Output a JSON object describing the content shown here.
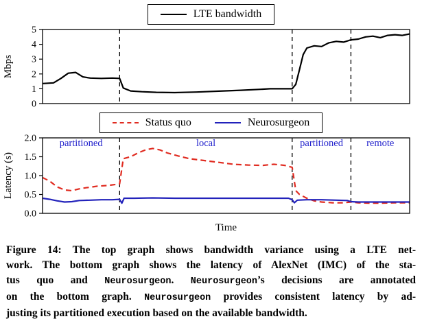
{
  "chart_data": [
    {
      "type": "line",
      "title": "",
      "ylabel": "Mbps",
      "xlabel": "",
      "ylim": [
        0,
        5
      ],
      "xlim": [
        0,
        100
      ],
      "yticks": [
        "0",
        "1",
        "2",
        "3",
        "4",
        "5"
      ],
      "grid": false,
      "legend_position": "top-center",
      "legend": [
        {
          "label": "LTE bandwidth",
          "color": "#000000",
          "dash": false
        }
      ],
      "dashed_vlines_x": [
        21,
        68,
        84
      ],
      "series": [
        {
          "name": "LTE bandwidth",
          "color": "#000000",
          "dash": false,
          "width": 2.2,
          "points": [
            [
              0,
              1.35
            ],
            [
              3,
              1.4
            ],
            [
              5,
              1.7
            ],
            [
              7,
              2.05
            ],
            [
              9,
              2.1
            ],
            [
              11,
              1.8
            ],
            [
              13,
              1.72
            ],
            [
              16,
              1.7
            ],
            [
              19,
              1.72
            ],
            [
              21,
              1.7
            ],
            [
              22,
              1.05
            ],
            [
              24,
              0.85
            ],
            [
              27,
              0.8
            ],
            [
              31,
              0.76
            ],
            [
              36,
              0.74
            ],
            [
              42,
              0.78
            ],
            [
              48,
              0.84
            ],
            [
              54,
              0.9
            ],
            [
              59,
              0.96
            ],
            [
              62,
              1.0
            ],
            [
              68,
              1.0
            ],
            [
              69,
              1.3
            ],
            [
              70,
              2.3
            ],
            [
              71,
              3.3
            ],
            [
              72,
              3.75
            ],
            [
              74,
              3.9
            ],
            [
              76,
              3.85
            ],
            [
              78,
              4.1
            ],
            [
              80,
              4.2
            ],
            [
              82,
              4.15
            ],
            [
              84,
              4.3
            ],
            [
              86,
              4.35
            ],
            [
              88,
              4.5
            ],
            [
              90,
              4.55
            ],
            [
              92,
              4.45
            ],
            [
              94,
              4.6
            ],
            [
              96,
              4.65
            ],
            [
              98,
              4.6
            ],
            [
              100,
              4.7
            ]
          ]
        }
      ]
    },
    {
      "type": "line",
      "title": "",
      "ylabel": "Latency (s)",
      "xlabel": "Time",
      "ylim": [
        0,
        2
      ],
      "xlim": [
        0,
        100
      ],
      "yticks": [
        "0.0",
        "0.5",
        "1.0",
        "1.5",
        "2.0"
      ],
      "grid": false,
      "legend_position": "top-center",
      "legend": [
        {
          "label": "Status quo",
          "color": "#e02b20",
          "dash": true
        },
        {
          "label": "Neurosurgeon",
          "color": "#2222bb",
          "dash": false
        }
      ],
      "dashed_vlines_x": [
        21,
        68,
        84
      ],
      "annotations": [
        {
          "text": "partitioned",
          "x": 10.5,
          "y": 1.78,
          "color": "#2222cc"
        },
        {
          "text": "local",
          "x": 44.5,
          "y": 1.78,
          "color": "#2222cc"
        },
        {
          "text": "partitioned",
          "x": 76,
          "y": 1.78,
          "color": "#2222cc"
        },
        {
          "text": "remote",
          "x": 92,
          "y": 1.78,
          "color": "#2222cc"
        }
      ],
      "series": [
        {
          "name": "Status quo",
          "color": "#e02b20",
          "dash": true,
          "width": 2.2,
          "points": [
            [
              0,
              0.95
            ],
            [
              2,
              0.85
            ],
            [
              4,
              0.7
            ],
            [
              6,
              0.62
            ],
            [
              8,
              0.6
            ],
            [
              10,
              0.65
            ],
            [
              12,
              0.68
            ],
            [
              15,
              0.72
            ],
            [
              18,
              0.74
            ],
            [
              21,
              0.78
            ],
            [
              22,
              1.45
            ],
            [
              24,
              1.5
            ],
            [
              26,
              1.6
            ],
            [
              28,
              1.68
            ],
            [
              30,
              1.72
            ],
            [
              32,
              1.68
            ],
            [
              34,
              1.6
            ],
            [
              37,
              1.52
            ],
            [
              40,
              1.45
            ],
            [
              44,
              1.4
            ],
            [
              48,
              1.35
            ],
            [
              52,
              1.3
            ],
            [
              56,
              1.28
            ],
            [
              60,
              1.27
            ],
            [
              63,
              1.3
            ],
            [
              66,
              1.27
            ],
            [
              68,
              1.22
            ],
            [
              69,
              0.6
            ],
            [
              70,
              0.5
            ],
            [
              72,
              0.4
            ],
            [
              74,
              0.33
            ],
            [
              76,
              0.3
            ],
            [
              79,
              0.28
            ],
            [
              82,
              0.28
            ],
            [
              84,
              0.3
            ],
            [
              86,
              0.28
            ],
            [
              89,
              0.27
            ],
            [
              92,
              0.27
            ],
            [
              96,
              0.28
            ],
            [
              100,
              0.28
            ]
          ]
        },
        {
          "name": "Neurosurgeon",
          "color": "#2222bb",
          "dash": false,
          "width": 2.2,
          "points": [
            [
              0,
              0.4
            ],
            [
              2,
              0.37
            ],
            [
              4,
              0.33
            ],
            [
              6,
              0.3
            ],
            [
              8,
              0.31
            ],
            [
              10,
              0.34
            ],
            [
              13,
              0.35
            ],
            [
              16,
              0.36
            ],
            [
              19,
              0.36
            ],
            [
              21,
              0.37
            ],
            [
              21.6,
              0.27
            ],
            [
              22.2,
              0.4
            ],
            [
              25,
              0.4
            ],
            [
              30,
              0.41
            ],
            [
              36,
              0.4
            ],
            [
              42,
              0.4
            ],
            [
              48,
              0.4
            ],
            [
              54,
              0.4
            ],
            [
              60,
              0.4
            ],
            [
              64,
              0.4
            ],
            [
              67,
              0.4
            ],
            [
              68,
              0.36
            ],
            [
              68.6,
              0.28
            ],
            [
              69.4,
              0.35
            ],
            [
              72,
              0.36
            ],
            [
              76,
              0.36
            ],
            [
              80,
              0.35
            ],
            [
              83,
              0.34
            ],
            [
              84,
              0.31
            ],
            [
              86,
              0.3
            ],
            [
              90,
              0.3
            ],
            [
              94,
              0.3
            ],
            [
              100,
              0.3
            ]
          ]
        }
      ]
    }
  ],
  "caption": {
    "lines": [
      [
        {
          "text": "Figure 14: The top graph shows bandwidth variance using a LTE net-",
          "mono": false
        }
      ],
      [
        {
          "text": "work. The bottom graph shows the latency of AlexNet (IMC) of the sta-",
          "mono": false
        }
      ],
      [
        {
          "text": "tus quo and ",
          "mono": false
        },
        {
          "text": "Neurosurgeon",
          "mono": true
        },
        {
          "text": ". ",
          "mono": false
        },
        {
          "text": "Neurosurgeon",
          "mono": true
        },
        {
          "text": "’s decisions are annotated",
          "mono": false
        }
      ],
      [
        {
          "text": "on the bottom graph. ",
          "mono": false
        },
        {
          "text": "Neurosurgeon",
          "mono": true
        },
        {
          "text": " provides consistent latency by ad-",
          "mono": false
        }
      ],
      [
        {
          "text": "justing its partitioned execution based on the available bandwidth.",
          "mono": false
        }
      ]
    ]
  }
}
